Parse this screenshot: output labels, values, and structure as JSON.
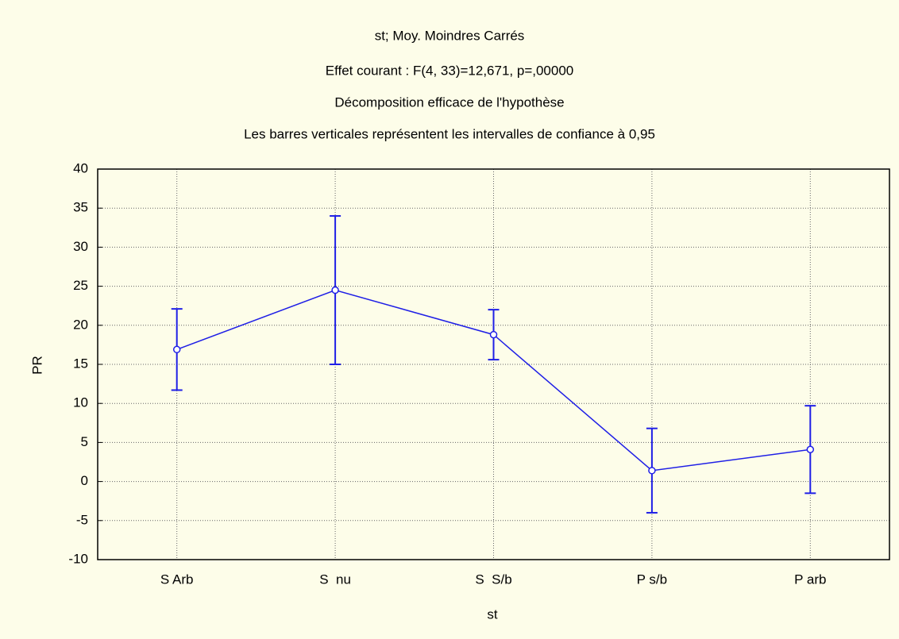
{
  "chart_data": {
    "type": "line",
    "titles": [
      "st; Moy. Moindres Carrés",
      "Effet courant : F(4, 33)=12,671, p=,00000",
      "Décomposition efficace de l'hypothèse",
      "Les barres verticales représentent les intervalles de confiance à 0,95"
    ],
    "x_label": "st",
    "y_label": "PR",
    "categories": [
      "S Arb",
      "S  nu",
      "S  S/b",
      "P s/b",
      "P arb"
    ],
    "series": [
      {
        "name": "PR",
        "color": "#1f1fe6",
        "values": [
          16.9,
          24.5,
          18.8,
          1.4,
          4.1
        ],
        "errors": [
          5.2,
          9.5,
          3.2,
          5.4,
          5.6
        ]
      }
    ],
    "ylim": [
      -10,
      40
    ],
    "yticks": [
      -10,
      -5,
      0,
      5,
      10,
      15,
      20,
      25,
      30,
      35,
      40
    ],
    "grid": true
  }
}
